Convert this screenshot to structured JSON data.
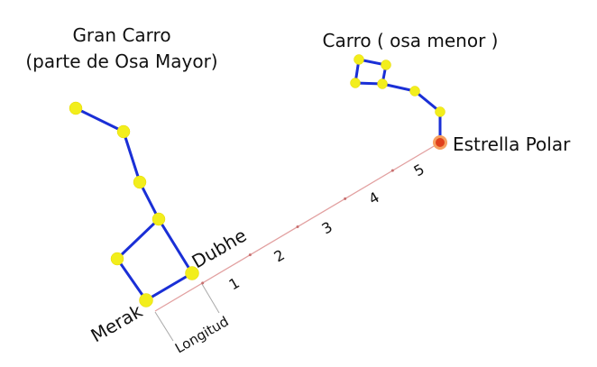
{
  "titles": {
    "big_dipper_line1": "Gran Carro",
    "big_dipper_line2": "(parte de Osa Mayor)",
    "little_dipper": "Carro ( osa menor )"
  },
  "labels": {
    "merak": "Merak",
    "dubhe": "Dubhe",
    "polaris": "Estrella Polar",
    "length": "Longitud"
  },
  "scale_numbers": [
    "1",
    "2",
    "3",
    "4",
    "5"
  ],
  "colors": {
    "line": "#1a2fd6",
    "star": "#f2ee1c",
    "polaris": "#e0401c",
    "scale": "#e2a0a0"
  }
}
